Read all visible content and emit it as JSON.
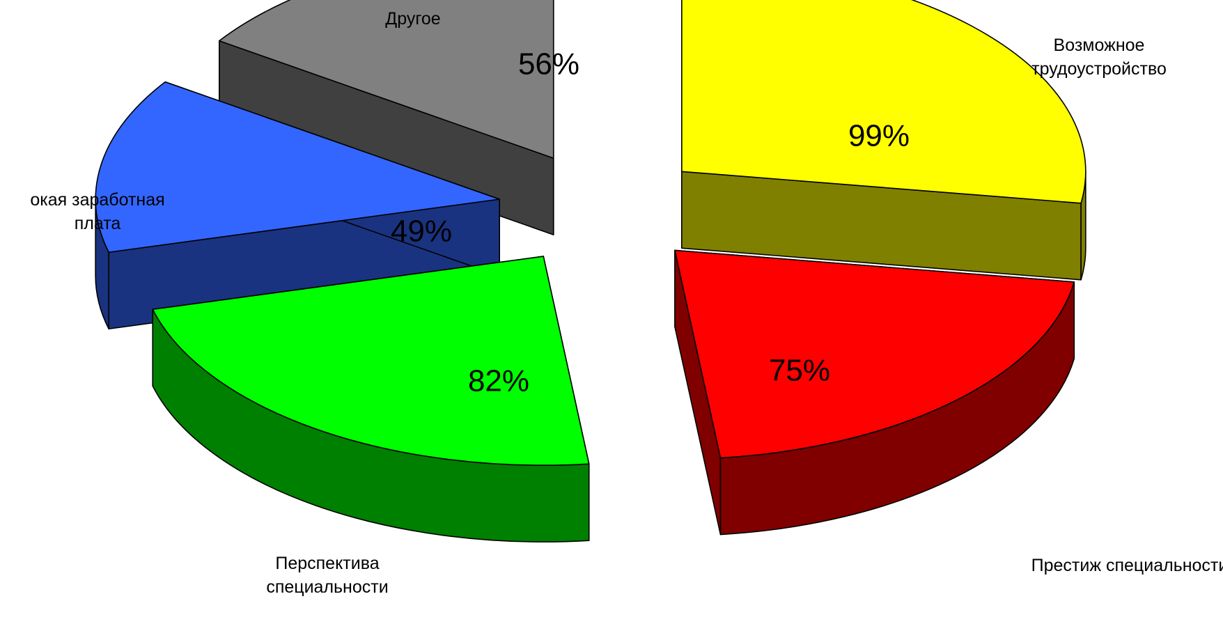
{
  "chart_data": {
    "type": "pie",
    "style": "3d-exploded",
    "title": "",
    "legend": "none",
    "slices": [
      {
        "category": "Возможное трудоустройство",
        "category_lines": [
          "Возможное",
          "трудоустройство"
        ],
        "value": 99,
        "label": "99%",
        "top_color": "#ffff00",
        "side_color": "#808000"
      },
      {
        "category": "Престиж специальности",
        "category_lines": [
          "Престиж специальности"
        ],
        "value": 75,
        "label": "75%",
        "top_color": "#ff0000",
        "side_color": "#800000"
      },
      {
        "category": "Перспектива специальности",
        "category_lines": [
          "Перспектива",
          "специальности"
        ],
        "value": 82,
        "label": "82%",
        "top_color": "#00ff00",
        "side_color": "#008000"
      },
      {
        "category": "Высокая заработная плата",
        "category_lines": [
          "окая заработная",
          "плата"
        ],
        "value": 49,
        "label": "49%",
        "top_color": "#3366ff",
        "side_color": "#1a3380"
      },
      {
        "category": "Другое",
        "category_lines": [
          "Другое"
        ],
        "value": 56,
        "label": "56%",
        "top_color": "#808080",
        "side_color": "#404040"
      }
    ]
  }
}
